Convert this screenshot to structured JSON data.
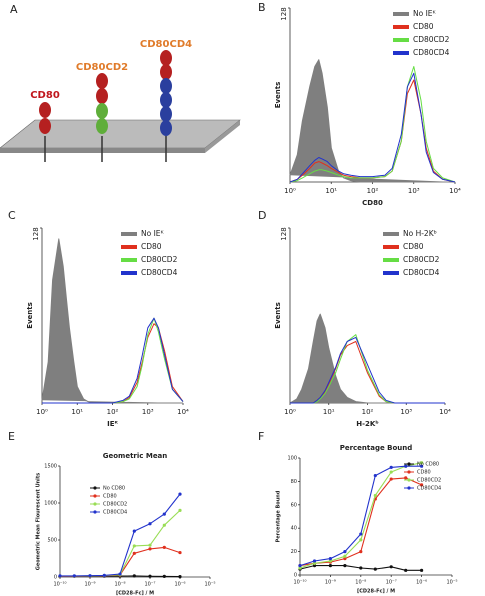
{
  "diagram": {
    "label": "A",
    "molecules": [
      "CD80",
      "CD80CD2",
      "CD80CD4"
    ]
  },
  "chart_data": [
    {
      "type": "line",
      "panel": "B",
      "xlabel": "CD80",
      "ylabel": "Events",
      "xscale": "log",
      "legend": "top-right",
      "x": [
        1,
        1.5,
        2,
        3,
        4,
        5,
        6,
        8,
        10,
        15,
        20,
        30,
        50,
        100,
        200,
        300,
        500,
        700,
        1000,
        1500,
        2000,
        3000,
        5000,
        10000
      ],
      "xlim": [
        1,
        10000
      ],
      "xticks": [
        {
          "value": 1,
          "label": "10⁰"
        },
        {
          "value": 10,
          "label": "10¹"
        },
        {
          "value": 100,
          "label": "10²"
        },
        {
          "value": 1000,
          "label": "10³"
        },
        {
          "value": 10000,
          "label": "10⁴"
        }
      ],
      "ylim": [
        0,
        128
      ],
      "yticks": [
        128
      ],
      "series": [
        {
          "name": "No IEᴷ",
          "color": "#7f7f7f",
          "fill": true,
          "values": [
            5,
            20,
            45,
            70,
            85,
            90,
            80,
            55,
            25,
            8,
            3,
            1,
            0,
            0,
            0,
            0,
            0,
            0,
            0,
            0,
            0,
            0,
            0,
            0
          ]
        },
        {
          "name": "CD80",
          "color": "#e0301e",
          "values": [
            0,
            2,
            5,
            10,
            14,
            15,
            14,
            12,
            10,
            7,
            5,
            4,
            3,
            3,
            4,
            8,
            30,
            65,
            75,
            50,
            25,
            8,
            2,
            0
          ]
        },
        {
          "name": "CD80CD2",
          "color": "#66dd44",
          "values": [
            0,
            1,
            3,
            6,
            8,
            9,
            9,
            8,
            7,
            5,
            4,
            3,
            3,
            3,
            4,
            8,
            30,
            70,
            85,
            60,
            30,
            10,
            3,
            0
          ]
        },
        {
          "name": "CD80CD4",
          "color": "#2233cc",
          "values": [
            0,
            2,
            6,
            12,
            16,
            18,
            17,
            15,
            12,
            8,
            6,
            5,
            4,
            4,
            5,
            10,
            35,
            70,
            80,
            50,
            22,
            7,
            2,
            0
          ]
        }
      ]
    },
    {
      "type": "line",
      "panel": "C",
      "xlabel": "IEᴷ",
      "ylabel": "Events",
      "xscale": "log",
      "legend": "top-right",
      "x": [
        1,
        1.5,
        2,
        3,
        4,
        5,
        6,
        8,
        10,
        15,
        20,
        30,
        50,
        100,
        200,
        300,
        500,
        700,
        1000,
        1500,
        2000,
        3000,
        5000,
        10000
      ],
      "xlim": [
        1,
        10000
      ],
      "xticks": [
        {
          "value": 1,
          "label": "10⁰"
        },
        {
          "value": 10,
          "label": "10¹"
        },
        {
          "value": 100,
          "label": "10²"
        },
        {
          "value": 1000,
          "label": "10³"
        },
        {
          "value": 10000,
          "label": "10⁴"
        }
      ],
      "ylim": [
        0,
        128
      ],
      "yticks": [
        128
      ],
      "series": [
        {
          "name": "No IEᴷ",
          "color": "#7f7f7f",
          "fill": true,
          "values": [
            2,
            30,
            90,
            120,
            100,
            75,
            55,
            30,
            12,
            3,
            1,
            0,
            0,
            0,
            0,
            0,
            0,
            0,
            0,
            0,
            0,
            0,
            0,
            0
          ]
        },
        {
          "name": "CD80",
          "color": "#e0301e",
          "values": [
            0,
            0,
            0,
            0,
            0,
            0,
            0,
            0,
            0,
            0,
            0,
            0,
            0,
            0,
            1,
            4,
            15,
            30,
            48,
            58,
            55,
            38,
            12,
            1
          ]
        },
        {
          "name": "CD80CD2",
          "color": "#66dd44",
          "values": [
            0,
            0,
            0,
            0,
            0,
            0,
            0,
            0,
            0,
            0,
            0,
            0,
            0,
            0,
            1,
            3,
            12,
            28,
            50,
            62,
            52,
            32,
            10,
            1
          ]
        },
        {
          "name": "CD80CD4",
          "color": "#2233cc",
          "values": [
            0,
            0,
            0,
            0,
            0,
            0,
            0,
            0,
            0,
            0,
            0,
            0,
            0,
            0,
            2,
            5,
            18,
            35,
            55,
            62,
            55,
            35,
            10,
            1
          ]
        }
      ]
    },
    {
      "type": "line",
      "panel": "D",
      "xlabel": "H-2Kᵇ",
      "ylabel": "Events",
      "xscale": "log",
      "legend": "top-right",
      "x": [
        1,
        1.5,
        2,
        3,
        4,
        5,
        6,
        8,
        10,
        15,
        20,
        30,
        50,
        100,
        200,
        300,
        500,
        700,
        1000,
        1500,
        2000,
        3000,
        5000,
        10000
      ],
      "xlim": [
        1,
        10000
      ],
      "xticks": [
        {
          "value": 1,
          "label": "10⁰"
        },
        {
          "value": 10,
          "label": "10¹"
        },
        {
          "value": 100,
          "label": "10²"
        },
        {
          "value": 1000,
          "label": "10³"
        },
        {
          "value": 10000,
          "label": "10⁴"
        }
      ],
      "ylim": [
        0,
        128
      ],
      "yticks": [
        128
      ],
      "series": [
        {
          "name": "No H-2Kᵇ",
          "color": "#7f7f7f",
          "fill": true,
          "values": [
            0,
            3,
            10,
            25,
            45,
            60,
            65,
            55,
            40,
            20,
            10,
            4,
            1,
            0,
            0,
            0,
            0,
            0,
            0,
            0,
            0,
            0,
            0,
            0
          ]
        },
        {
          "name": "CD80",
          "color": "#e0301e",
          "values": [
            0,
            0,
            0,
            0,
            0,
            2,
            4,
            8,
            14,
            25,
            35,
            42,
            45,
            22,
            5,
            1,
            0,
            0,
            0,
            0,
            0,
            0,
            0,
            0
          ]
        },
        {
          "name": "CD80CD2",
          "color": "#66dd44",
          "values": [
            0,
            0,
            0,
            0,
            0,
            1,
            3,
            7,
            12,
            22,
            32,
            45,
            50,
            24,
            6,
            1,
            0,
            0,
            0,
            0,
            0,
            0,
            0,
            0
          ]
        },
        {
          "name": "CD80CD4",
          "color": "#2233cc",
          "values": [
            0,
            0,
            0,
            0,
            0,
            2,
            4,
            9,
            15,
            26,
            36,
            45,
            48,
            28,
            8,
            2,
            0,
            0,
            0,
            0,
            0,
            0,
            0,
            0
          ]
        }
      ]
    },
    {
      "type": "line",
      "panel": "E",
      "title": "Geometric Mean",
      "xlabel": "[CD28-Fc] / M",
      "ylabel": "Geometric Mean Flourescent Units",
      "xscale": "log",
      "markers": true,
      "legend": "top-left",
      "x": [
        1e-10,
        3e-10,
        1e-09,
        3e-09,
        1e-08,
        3e-08,
        1e-07,
        3e-07,
        1e-06
      ],
      "xlim": [
        1e-10,
        1e-05
      ],
      "xticks": [
        {
          "value": 1e-10,
          "label": "10⁻¹⁰"
        },
        {
          "value": 1e-09,
          "label": "10⁻⁹"
        },
        {
          "value": 1e-08,
          "label": "10⁻⁸"
        },
        {
          "value": 1e-07,
          "label": "10⁻⁷"
        },
        {
          "value": 1e-06,
          "label": "10⁻⁶"
        },
        {
          "value": 1e-05,
          "label": "10⁻⁵"
        }
      ],
      "ylim": [
        0,
        1500
      ],
      "yticks": [
        0,
        500,
        1000,
        1500
      ],
      "series": [
        {
          "name": "No CD80",
          "color": "#111111",
          "values": [
            10,
            10,
            10,
            12,
            12,
            15,
            10,
            8,
            5
          ]
        },
        {
          "name": "CD80",
          "color": "#e0301e",
          "values": [
            10,
            10,
            12,
            18,
            25,
            320,
            380,
            400,
            330
          ]
        },
        {
          "name": "CD80CD2",
          "color": "#99dd55",
          "values": [
            12,
            12,
            15,
            20,
            30,
            420,
            430,
            700,
            900
          ]
        },
        {
          "name": "CD80CD4",
          "color": "#2233cc",
          "values": [
            15,
            15,
            18,
            22,
            40,
            620,
            720,
            850,
            1120
          ]
        }
      ]
    },
    {
      "type": "line",
      "panel": "F",
      "title": "Percentage Bound",
      "xlabel": "[CD28-Fc] / M",
      "ylabel": "Percentage Bound",
      "xscale": "log",
      "markers": true,
      "legend": "top-right",
      "x": [
        1e-10,
        3e-10,
        1e-09,
        3e-09,
        1e-08,
        3e-08,
        1e-07,
        3e-07,
        1e-06
      ],
      "xlim": [
        1e-10,
        1e-05
      ],
      "xticks": [
        {
          "value": 1e-10,
          "label": "10⁻¹⁰"
        },
        {
          "value": 1e-09,
          "label": "10⁻⁹"
        },
        {
          "value": 1e-08,
          "label": "10⁻⁸"
        },
        {
          "value": 1e-07,
          "label": "10⁻⁷"
        },
        {
          "value": 1e-06,
          "label": "10⁻⁶"
        },
        {
          "value": 1e-05,
          "label": "10⁻⁵"
        }
      ],
      "ylim": [
        0,
        100
      ],
      "yticks": [
        0,
        20,
        40,
        60,
        80,
        100
      ],
      "series": [
        {
          "name": "No CD80",
          "color": "#111111",
          "values": [
            5,
            8,
            8,
            8,
            6,
            5,
            7,
            4,
            4
          ]
        },
        {
          "name": "CD80",
          "color": "#e0301e",
          "values": [
            8,
            10,
            11,
            14,
            20,
            65,
            82,
            83,
            77
          ]
        },
        {
          "name": "CD80CD2",
          "color": "#99dd55",
          "values": [
            6,
            10,
            12,
            16,
            30,
            68,
            88,
            93,
            96
          ]
        },
        {
          "name": "CD80CD4",
          "color": "#2233cc",
          "values": [
            8,
            12,
            14,
            20,
            35,
            85,
            92,
            93,
            93
          ]
        }
      ]
    }
  ]
}
